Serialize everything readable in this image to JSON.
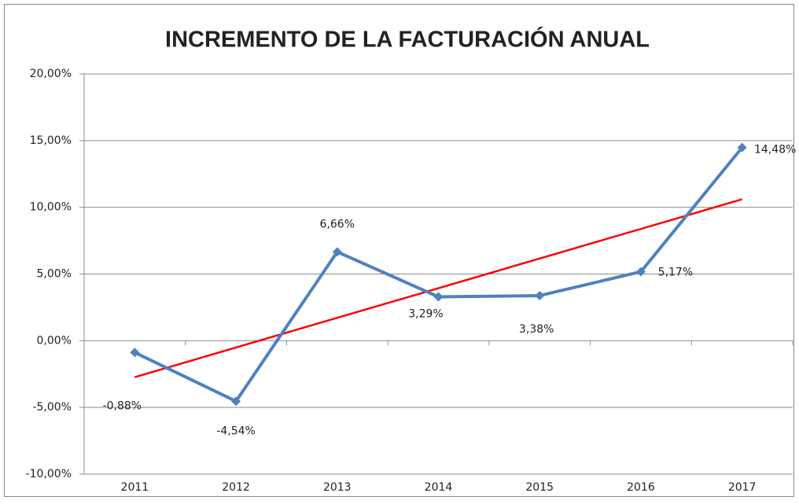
{
  "chart_data": {
    "type": "line",
    "title": "INCREMENTO DE LA FACTURACIÓN ANUAL",
    "categories": [
      "2011",
      "2012",
      "2013",
      "2014",
      "2015",
      "2016",
      "2017"
    ],
    "series": [
      {
        "name": "Incremento",
        "color": "#4f81bd",
        "values": [
          -0.88,
          -4.54,
          6.66,
          3.29,
          3.38,
          5.17,
          14.48
        ],
        "value_labels": [
          "-0,88%",
          "-4,54%",
          "6,66%",
          "3,29%",
          "3,38%",
          "5,17%",
          "14,48%"
        ]
      }
    ],
    "trendline": {
      "type": "linear",
      "color": "#ff0000"
    },
    "ylim": [
      -10,
      20
    ],
    "yticks": [
      {
        "value": -10,
        "label": "-10,00%"
      },
      {
        "value": -5,
        "label": "-5,00%"
      },
      {
        "value": 0,
        "label": "0,00%"
      },
      {
        "value": 5,
        "label": "5,00%"
      },
      {
        "value": 10,
        "label": "10,00%"
      },
      {
        "value": 15,
        "label": "15,00%"
      },
      {
        "value": 20,
        "label": "20,00%"
      }
    ],
    "grid": true
  }
}
